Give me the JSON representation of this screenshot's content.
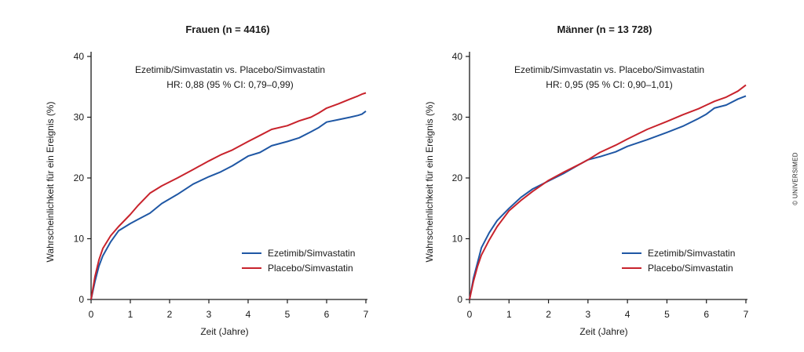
{
  "colors": {
    "ezetimib": "#1f57a4",
    "placebo": "#c8232c",
    "axis": "#1a1a1a"
  },
  "credit": "© UNIVERSIMED",
  "chart_data": [
    {
      "type": "line",
      "title": "Frauen (n = 4416)",
      "xlabel": "Zeit (Jahre)",
      "ylabel": "Wahrscheinlichkeit für ein Ereignis (%)",
      "xlim": [
        0,
        7
      ],
      "ylim": [
        0,
        40
      ],
      "xticks": [
        0,
        1,
        2,
        3,
        4,
        5,
        6,
        7
      ],
      "yticks": [
        0,
        10,
        20,
        30,
        40
      ],
      "annotation": [
        "Ezetimib/Simvastatin vs. Placebo/Simvastatin",
        "HR: 0,88 (95 % CI: 0,79–0,99)"
      ],
      "legend": "bottom-right",
      "series": [
        {
          "name": "Ezetimib/Simvastatin",
          "color": "#1f57a4",
          "x": [
            0,
            0.1,
            0.2,
            0.3,
            0.5,
            0.7,
            1.0,
            1.2,
            1.5,
            1.8,
            2.2,
            2.6,
            3.0,
            3.3,
            3.6,
            4.0,
            4.3,
            4.6,
            5.0,
            5.3,
            5.6,
            5.8,
            6.0,
            6.3,
            6.6,
            6.8,
            6.9,
            7.0
          ],
          "y": [
            0,
            3,
            5.5,
            7.2,
            9.5,
            11.3,
            12.5,
            13.2,
            14.2,
            15.8,
            17.3,
            19,
            20.2,
            21,
            22,
            23.6,
            24.2,
            25.3,
            26,
            26.6,
            27.6,
            28.3,
            29.2,
            29.6,
            30,
            30.3,
            30.5,
            31
          ]
        },
        {
          "name": "Placebo/Simvastatin",
          "color": "#c8232c",
          "x": [
            0,
            0.1,
            0.2,
            0.3,
            0.5,
            0.7,
            1.0,
            1.2,
            1.5,
            1.8,
            2.2,
            2.6,
            3.0,
            3.3,
            3.6,
            4.0,
            4.3,
            4.6,
            5.0,
            5.3,
            5.6,
            5.8,
            6.0,
            6.3,
            6.6,
            6.8,
            6.9,
            7.0
          ],
          "y": [
            0,
            3.8,
            6.5,
            8.4,
            10.5,
            12,
            14,
            15.5,
            17.5,
            18.7,
            20,
            21.4,
            22.8,
            23.8,
            24.6,
            26,
            27,
            28,
            28.6,
            29.4,
            30,
            30.7,
            31.5,
            32.2,
            33,
            33.5,
            33.8,
            34
          ]
        }
      ]
    },
    {
      "type": "line",
      "title": "Männer (n = 13 728)",
      "xlabel": "Zeit (Jahre)",
      "ylabel": "Wahrscheinlichkeit für ein Ereignis (%)",
      "xlim": [
        0,
        7
      ],
      "ylim": [
        0,
        40
      ],
      "xticks": [
        0,
        1,
        2,
        3,
        4,
        5,
        6,
        7
      ],
      "yticks": [
        0,
        10,
        20,
        30,
        40
      ],
      "annotation": [
        "Ezetimib/Simvastatin vs. Placebo/Simvastatin",
        "HR: 0,95 (95 % CI: 0,90–1,01)"
      ],
      "legend": "bottom-right",
      "series": [
        {
          "name": "Ezetimib/Simvastatin",
          "color": "#1f57a4",
          "x": [
            0,
            0.1,
            0.2,
            0.3,
            0.5,
            0.7,
            1.0,
            1.3,
            1.6,
            2.0,
            2.4,
            2.8,
            3.0,
            3.3,
            3.7,
            4.0,
            4.5,
            5.0,
            5.4,
            5.8,
            6.0,
            6.2,
            6.5,
            6.8,
            7.0
          ],
          "y": [
            0,
            3.5,
            6,
            8.5,
            11,
            13,
            15,
            16.8,
            18.2,
            19.5,
            20.8,
            22.3,
            23,
            23.5,
            24.3,
            25.2,
            26.3,
            27.5,
            28.5,
            29.8,
            30.5,
            31.5,
            32,
            33,
            33.5
          ]
        },
        {
          "name": "Placebo/Simvastatin",
          "color": "#c8232c",
          "x": [
            0,
            0.1,
            0.2,
            0.3,
            0.5,
            0.7,
            1.0,
            1.3,
            1.6,
            2.0,
            2.4,
            2.8,
            3.0,
            3.3,
            3.7,
            4.0,
            4.5,
            5.0,
            5.4,
            5.8,
            6.0,
            6.2,
            6.5,
            6.8,
            7.0
          ],
          "y": [
            0,
            3,
            5.4,
            7.3,
            9.8,
            12,
            14.6,
            16.3,
            17.8,
            19.6,
            21,
            22.3,
            23,
            24.2,
            25.4,
            26.4,
            28,
            29.3,
            30.4,
            31.4,
            32,
            32.6,
            33.3,
            34.3,
            35.3
          ]
        }
      ]
    }
  ]
}
